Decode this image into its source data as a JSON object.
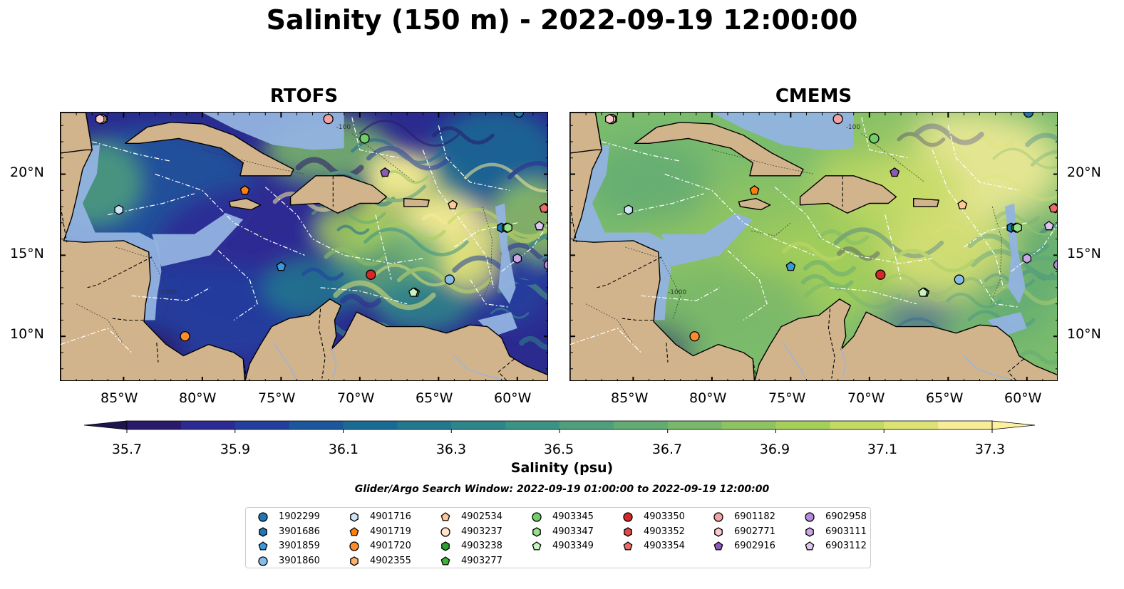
{
  "title": "Salinity (150 m) - 2022-09-19 12:00:00",
  "panels": [
    {
      "title": "RTOFS",
      "model": "rtofs"
    },
    {
      "title": "CMEMS",
      "model": "cmems"
    }
  ],
  "lon_ticks": [
    "85°W",
    "80°W",
    "75°W",
    "70°W",
    "65°W",
    "60°W"
  ],
  "lat_ticks": [
    "20°N",
    "15°N",
    "10°N"
  ],
  "lon_range": [
    -89,
    -58
  ],
  "lat_range": [
    7.2,
    23.8
  ],
  "contour_labels": [
    "-1000",
    "-100"
  ],
  "colorbar": {
    "label": "Salinity (psu)",
    "ticks": [
      "35.7",
      "35.9",
      "36.1",
      "36.3",
      "36.5",
      "36.7",
      "36.9",
      "37.1",
      "37.3"
    ],
    "range": [
      35.7,
      37.3
    ],
    "colors": [
      "#2a1a6b",
      "#2d2a94",
      "#233f9e",
      "#1c569c",
      "#1a6b94",
      "#22798e",
      "#2e868b",
      "#3b9384",
      "#4f9f7c",
      "#63ab73",
      "#79b76a",
      "#8fc361",
      "#a6cf5a",
      "#c2d962",
      "#dde274",
      "#f7ec98"
    ]
  },
  "search_window": "Glider/Argo Search Window: 2022-09-19 01:00:00 to 2022-09-19 12:00:00",
  "colors": {
    "land": "#d2b48c",
    "shelf": "#92b3e0",
    "deep": "#261c5e"
  },
  "legend": [
    {
      "id": "1902299",
      "color": "#1f77b4",
      "marker": "circle"
    },
    {
      "id": "3901686",
      "color": "#1f77b4",
      "marker": "hexagon"
    },
    {
      "id": "3901859",
      "color": "#3a9ad9",
      "marker": "pentagon"
    },
    {
      "id": "3901860",
      "color": "#86bde8",
      "marker": "circle"
    },
    {
      "id": "4901716",
      "color": "#cce6f7",
      "marker": "hexagon"
    },
    {
      "id": "4901719",
      "color": "#ff7f0e",
      "marker": "pentagon"
    },
    {
      "id": "4901720",
      "color": "#ff8c2a",
      "marker": "circle"
    },
    {
      "id": "4902355",
      "color": "#ffb26b",
      "marker": "hexagon"
    },
    {
      "id": "4902534",
      "color": "#ffc89a",
      "marker": "pentagon"
    },
    {
      "id": "4903237",
      "color": "#ffe4c9",
      "marker": "circle"
    },
    {
      "id": "4903238",
      "color": "#2ca02c",
      "marker": "hexagon"
    },
    {
      "id": "4903277",
      "color": "#3cb43c",
      "marker": "pentagon"
    },
    {
      "id": "4903345",
      "color": "#6fcf6a",
      "marker": "circle"
    },
    {
      "id": "4903347",
      "color": "#98df8a",
      "marker": "hexagon"
    },
    {
      "id": "4903349",
      "color": "#c8f2c0",
      "marker": "pentagon"
    },
    {
      "id": "4903350",
      "color": "#d62728",
      "marker": "circle"
    },
    {
      "id": "4903352",
      "color": "#e04848",
      "marker": "hexagon"
    },
    {
      "id": "4903354",
      "color": "#ec6a6a",
      "marker": "pentagon"
    },
    {
      "id": "6901182",
      "color": "#f4a3a3",
      "marker": "circle"
    },
    {
      "id": "6902771",
      "color": "#fbcaca",
      "marker": "hexagon"
    },
    {
      "id": "6902916",
      "color": "#8c5bb5",
      "marker": "pentagon"
    },
    {
      "id": "6902958",
      "color": "#b58ad8",
      "marker": "circle"
    },
    {
      "id": "6903111",
      "color": "#c9a6e6",
      "marker": "hexagon"
    },
    {
      "id": "6903112",
      "color": "#ddc6f2",
      "marker": "pentagon"
    }
  ],
  "floats": [
    {
      "id": "1902299",
      "lon": -59.9,
      "lat": 23.8
    },
    {
      "id": "3901686",
      "lon": -61.0,
      "lat": 16.7
    },
    {
      "id": "3901859",
      "lon": -75.0,
      "lat": 14.3
    },
    {
      "id": "3901860",
      "lon": -64.3,
      "lat": 13.5
    },
    {
      "id": "4901716",
      "lon": -85.3,
      "lat": 17.8
    },
    {
      "id": "4901719",
      "lon": -77.3,
      "lat": 19.0
    },
    {
      "id": "4901720",
      "lon": -81.1,
      "lat": 10.0
    },
    {
      "id": "4902355",
      "lon": -86.3,
      "lat": 23.4
    },
    {
      "id": "4902534",
      "lon": -64.1,
      "lat": 18.1
    },
    {
      "id": "4903237",
      "lon": -86.4,
      "lat": 23.4
    },
    {
      "id": "4903238",
      "lon": -60.7,
      "lat": 16.7
    },
    {
      "id": "4903277",
      "lon": -66.5,
      "lat": 12.7
    },
    {
      "id": "4903345",
      "lon": -69.7,
      "lat": 22.2
    },
    {
      "id": "4903347",
      "lon": -60.6,
      "lat": 16.7
    },
    {
      "id": "4903349",
      "lon": -66.6,
      "lat": 12.7
    },
    {
      "id": "4903350",
      "lon": -69.3,
      "lat": 13.8
    },
    {
      "id": "4903352",
      "lon": -58.2,
      "lat": 17.9
    },
    {
      "id": "4903354",
      "lon": -58.3,
      "lat": 17.9
    },
    {
      "id": "6901182",
      "lon": -72.0,
      "lat": 23.4
    },
    {
      "id": "6902771",
      "lon": -86.5,
      "lat": 23.4
    },
    {
      "id": "6902916",
      "lon": -68.4,
      "lat": 20.1
    },
    {
      "id": "6902958",
      "lon": -58.0,
      "lat": 14.4
    },
    {
      "id": "6903111",
      "lon": -60.0,
      "lat": 14.8
    },
    {
      "id": "6903112",
      "lon": -58.6,
      "lat": 16.8
    }
  ]
}
